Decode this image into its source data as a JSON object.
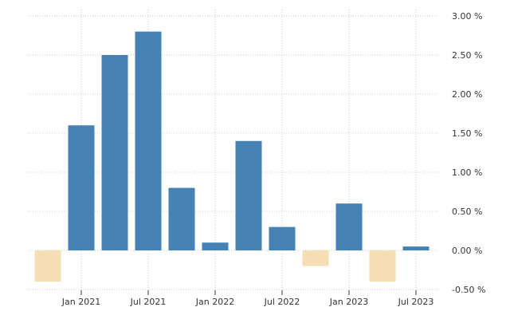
{
  "chart_data": {
    "type": "bar",
    "categories": [
      "2020-Q4",
      "2021-Q1",
      "2021-Q2",
      "2021-Q3",
      "2021-Q4",
      "2022-Q1",
      "2022-Q2",
      "2022-Q3",
      "2022-Q4",
      "2023-Q1",
      "2023-Q2",
      "2023-Q3"
    ],
    "values": [
      -0.4,
      1.6,
      2.5,
      2.8,
      0.8,
      0.1,
      1.4,
      0.3,
      -0.2,
      0.6,
      -0.4,
      0.05
    ],
    "ylim": [
      -0.5,
      3.0
    ],
    "y_ticks": [
      -0.5,
      0.0,
      0.5,
      1.0,
      1.5,
      2.0,
      2.5,
      3.0
    ],
    "y_tick_labels": [
      "-0.50 %",
      "0.00 %",
      "0.50 %",
      "1.00 %",
      "1.50 %",
      "2.00 %",
      "2.50 %",
      "3.00 %"
    ],
    "x_tick_labels": [
      "Jan 2021",
      "Jul 2021",
      "Jan 2022",
      "Jul 2022",
      "Jan 2023",
      "Jul 2023"
    ],
    "x_tick_categories": [
      "2021-Q1",
      "2021-Q3",
      "2022-Q1",
      "2022-Q3",
      "2023-Q1",
      "2023-Q3"
    ],
    "title": "",
    "xlabel": "",
    "ylabel": "",
    "grid": true,
    "y_axis_position": "right",
    "colors": {
      "positive": "#4682b4",
      "negative": "#f5deb3",
      "grid": "#cccccc",
      "axis": "#333333"
    }
  }
}
